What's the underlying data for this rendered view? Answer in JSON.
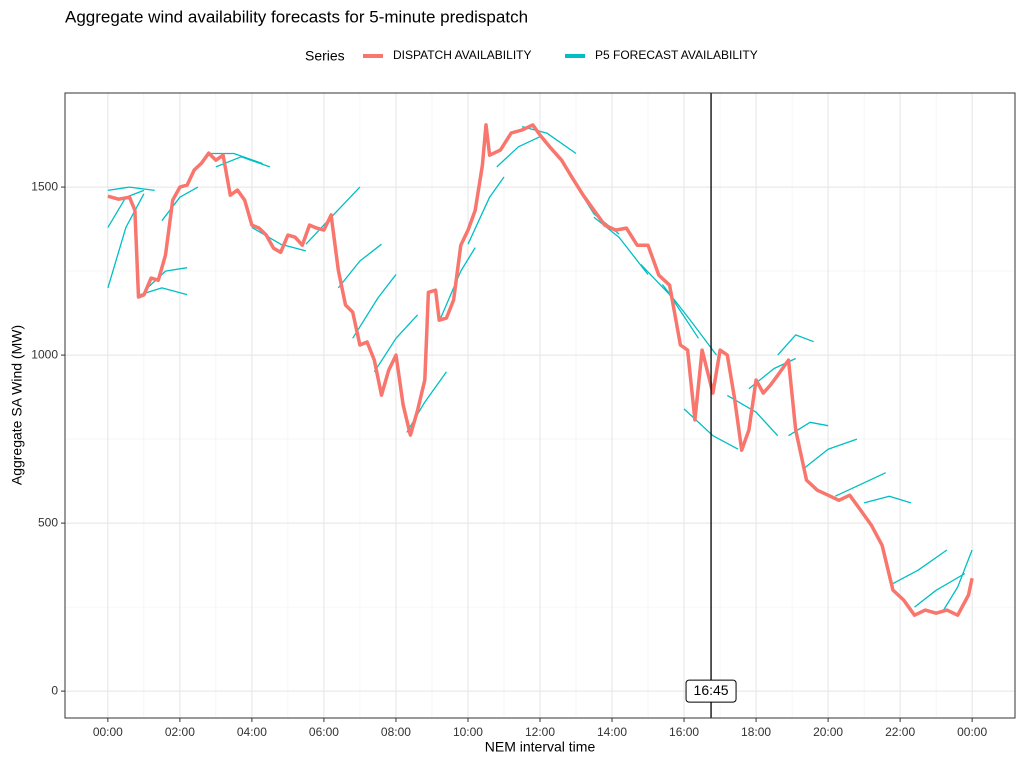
{
  "chart_data": {
    "type": "line",
    "title": "Aggregate wind availability forecasts for 5-minute predispatch",
    "legend_title": "Series",
    "x_label": "NEM interval time",
    "y_label": "Aggregate SA Wind (MW)",
    "xlim": [
      -1.19,
      25.19
    ],
    "ylim": [
      -80,
      1780
    ],
    "xticks": [
      {
        "value": 0,
        "label": "00:00"
      },
      {
        "value": 2,
        "label": "02:00"
      },
      {
        "value": 4,
        "label": "04:00"
      },
      {
        "value": 6,
        "label": "06:00"
      },
      {
        "value": 8,
        "label": "08:00"
      },
      {
        "value": 10,
        "label": "10:00"
      },
      {
        "value": 12,
        "label": "12:00"
      },
      {
        "value": 14,
        "label": "14:00"
      },
      {
        "value": 16,
        "label": "16:00"
      },
      {
        "value": 18,
        "label": "18:00"
      },
      {
        "value": 20,
        "label": "20:00"
      },
      {
        "value": 22,
        "label": "22:00"
      },
      {
        "value": 24,
        "label": "00:00"
      }
    ],
    "yticks": [
      0,
      500,
      1000,
      1500
    ],
    "grid": true,
    "legend": "top",
    "annotations": [
      {
        "x": 16.75,
        "label": "16:45"
      }
    ],
    "series": [
      {
        "name": "P5 FORECAST AVAILABILITY",
        "color": "#00BFC4",
        "x": [
          0,
          0.5,
          1,
          null,
          0,
          0.5,
          1,
          null,
          0,
          0.6,
          1.3,
          null,
          0.9,
          1.5,
          2.2,
          null,
          1.1,
          1.6,
          2.2,
          null,
          1.5,
          2.0,
          2.5,
          null,
          2.8,
          3.5,
          4.3,
          null,
          3.0,
          3.7,
          4.5,
          null,
          4.0,
          4.8,
          5.5,
          null,
          5.5,
          6.2,
          7.0,
          null,
          6.4,
          7.0,
          7.6,
          null,
          6.8,
          7.5,
          8.0,
          null,
          7.4,
          8.0,
          8.6,
          null,
          8.3,
          8.8,
          9.4,
          null,
          9.2,
          9.8,
          10.2,
          null,
          10.0,
          10.6,
          11.0,
          null,
          10.8,
          11.4,
          12.0,
          null,
          11.5,
          12.2,
          13.0,
          null,
          12.8,
          13.5,
          14.2,
          null,
          13.5,
          14.2,
          15.0,
          null,
          14.8,
          15.6,
          16.4,
          null,
          15.4,
          16.2,
          16.9,
          null,
          16.0,
          16.8,
          17.5,
          null,
          17.2,
          18.0,
          18.6,
          null,
          17.8,
          18.5,
          19.1,
          null,
          18.6,
          19.1,
          19.6,
          null,
          18.9,
          19.5,
          20.0,
          null,
          19.3,
          20.0,
          20.8,
          null,
          20.2,
          21.0,
          21.6,
          null,
          21.0,
          21.7,
          22.3,
          null,
          21.8,
          22.5,
          23.3,
          null,
          22.4,
          23.0,
          23.8,
          null,
          23.2,
          23.6,
          24.0
        ],
        "values": [
          1200,
          1380,
          1480,
          null,
          1380,
          1470,
          1490,
          null,
          1490,
          1500,
          1490,
          null,
          1180,
          1200,
          1180,
          null,
          1200,
          1250,
          1260,
          null,
          1400,
          1470,
          1500,
          null,
          1600,
          1600,
          1570,
          null,
          1560,
          1590,
          1560,
          null,
          1380,
          1330,
          1310,
          null,
          1330,
          1410,
          1500,
          null,
          1200,
          1280,
          1330,
          null,
          1050,
          1170,
          1240,
          null,
          950,
          1050,
          1120,
          null,
          770,
          860,
          950,
          null,
          1100,
          1250,
          1320,
          null,
          1330,
          1470,
          1530,
          null,
          1560,
          1620,
          1650,
          null,
          1680,
          1660,
          1600,
          null,
          1540,
          1420,
          1360,
          null,
          1410,
          1350,
          1240,
          null,
          1270,
          1180,
          1050,
          null,
          1210,
          1100,
          1000,
          null,
          840,
          760,
          720,
          null,
          880,
          830,
          760,
          null,
          900,
          960,
          990,
          null,
          1000,
          1060,
          1040,
          null,
          760,
          800,
          790,
          null,
          660,
          720,
          750,
          null,
          580,
          620,
          650,
          null,
          560,
          580,
          560,
          null,
          320,
          360,
          420,
          null,
          250,
          300,
          350,
          null,
          240,
          310,
          420
        ]
      },
      {
        "name": "DISPATCH AVAILABILITY",
        "color": "#F8766D",
        "x": [
          0,
          0.3,
          0.6,
          0.75,
          0.85,
          1.0,
          1.2,
          1.4,
          1.6,
          1.8,
          2.0,
          2.2,
          2.4,
          2.6,
          2.8,
          3.0,
          3.2,
          3.4,
          3.6,
          3.8,
          4.0,
          4.2,
          4.4,
          4.6,
          4.8,
          5.0,
          5.2,
          5.4,
          5.6,
          5.8,
          6.0,
          6.2,
          6.4,
          6.6,
          6.8,
          7.0,
          7.2,
          7.4,
          7.6,
          7.8,
          8.0,
          8.2,
          8.4,
          8.6,
          8.8,
          8.9,
          9.1,
          9.2,
          9.4,
          9.6,
          9.8,
          10.0,
          10.2,
          10.4,
          10.5,
          10.6,
          10.9,
          11.2,
          11.5,
          11.8,
          12.0,
          12.3,
          12.6,
          12.9,
          13.2,
          13.5,
          13.8,
          14.1,
          14.4,
          14.7,
          15.0,
          15.3,
          15.6,
          15.9,
          16.1,
          16.3,
          16.5,
          16.8,
          17.0,
          17.2,
          17.4,
          17.6,
          17.8,
          18.0,
          18.2,
          18.4,
          18.6,
          18.9,
          19.1,
          19.4,
          19.7,
          20.0,
          20.3,
          20.6,
          20.9,
          21.2,
          21.5,
          21.8,
          22.1,
          22.4,
          22.7,
          23.0,
          23.3,
          23.6,
          23.9,
          24.0
        ],
        "values": [
          1473,
          1464,
          1470,
          1431,
          1173,
          1179,
          1229,
          1223,
          1298,
          1461,
          1500,
          1506,
          1551,
          1571,
          1601,
          1580,
          1595,
          1476,
          1491,
          1461,
          1387,
          1378,
          1357,
          1318,
          1306,
          1357,
          1351,
          1327,
          1387,
          1378,
          1372,
          1417,
          1253,
          1149,
          1128,
          1030,
          1039,
          985,
          881,
          955,
          1000,
          851,
          762,
          836,
          926,
          1187,
          1193,
          1104,
          1110,
          1164,
          1327,
          1372,
          1431,
          1565,
          1685,
          1595,
          1610,
          1661,
          1670,
          1685,
          1655,
          1616,
          1580,
          1527,
          1476,
          1431,
          1387,
          1372,
          1378,
          1327,
          1327,
          1238,
          1208,
          1030,
          1015,
          807,
          1015,
          887,
          1015,
          1000,
          872,
          717,
          777,
          926,
          887,
          911,
          940,
          985,
          777,
          628,
          598,
          583,
          568,
          583,
          539,
          494,
          434,
          301,
          271,
          226,
          241,
          232,
          241,
          226,
          286,
          336
        ]
      }
    ]
  }
}
